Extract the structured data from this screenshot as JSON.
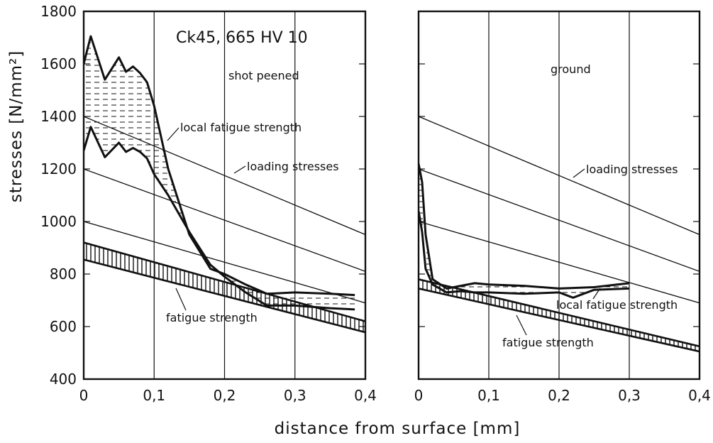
{
  "chart_data": {
    "type": "line",
    "ylabel": "stresses [N/mm²]",
    "xlabel": "distance from surface [mm]",
    "ylim": [
      400,
      1800
    ],
    "yticks": [
      400,
      600,
      800,
      1000,
      1200,
      1400,
      1600,
      1800
    ],
    "ytick_labels": [
      "400",
      "600",
      "800",
      "1000",
      "1200",
      "1400",
      "1600",
      "1800"
    ],
    "specimen_label": "Ck45, 665 HV 10",
    "panels": [
      {
        "title": "shot peened",
        "xlim": [
          0,
          0.4
        ],
        "xticks": [
          0,
          0.1,
          0.2,
          0.3,
          0.4
        ],
        "xtick_labels": [
          "0",
          "0,1",
          "0,2",
          "0,3",
          "0,4"
        ],
        "loading_stresses": {
          "label": "loading stresses",
          "lines": [
            {
              "x": [
                0,
                0.4
              ],
              "y": [
                1400,
                950
              ]
            },
            {
              "x": [
                0,
                0.4
              ],
              "y": [
                1200,
                810
              ]
            },
            {
              "x": [
                0,
                0.4
              ],
              "y": [
                1000,
                690
              ]
            }
          ]
        },
        "fatigue_strength_band": {
          "label": "fatigue strength",
          "x": [
            0,
            0.4
          ],
          "upper": [
            920,
            620
          ],
          "lower": [
            855,
            578
          ]
        },
        "local_fatigue_strength_band": {
          "label": "local fatigue strength",
          "upper": {
            "x": [
              0,
              0.01,
              0.03,
              0.05,
              0.06,
              0.07,
              0.08,
              0.09,
              0.1,
              0.12,
              0.15,
              0.18,
              0.2,
              0.23,
              0.26,
              0.3,
              0.35,
              0.385
            ],
            "y": [
              1600,
              1705,
              1540,
              1625,
              1570,
              1590,
              1565,
              1530,
              1440,
              1200,
              950,
              820,
              800,
              760,
              725,
              730,
              725,
              720
            ]
          },
          "lower": {
            "x": [
              0,
              0.01,
              0.03,
              0.05,
              0.06,
              0.07,
              0.08,
              0.09,
              0.1,
              0.12,
              0.15,
              0.18,
              0.2,
              0.23,
              0.26,
              0.3,
              0.35,
              0.385
            ],
            "y": [
              1270,
              1360,
              1245,
              1300,
              1265,
              1280,
              1265,
              1240,
              1180,
              1100,
              960,
              835,
              790,
              730,
              680,
              680,
              670,
              665
            ]
          }
        }
      },
      {
        "title": "ground",
        "xlim": [
          0,
          0.4
        ],
        "xticks": [
          0,
          0.1,
          0.2,
          0.3,
          0.4
        ],
        "xtick_labels": [
          "0",
          "0,1",
          "0,2",
          "0,3",
          "0,4"
        ],
        "loading_stresses": {
          "label": "loading stresses",
          "lines": [
            {
              "x": [
                0,
                0.4
              ],
              "y": [
                1400,
                950
              ]
            },
            {
              "x": [
                0,
                0.4
              ],
              "y": [
                1200,
                810
              ]
            },
            {
              "x": [
                0,
                0.4
              ],
              "y": [
                1000,
                690
              ]
            }
          ]
        },
        "fatigue_strength_band": {
          "label": "fatigue strength",
          "x": [
            0,
            0.4
          ],
          "upper": [
            780,
            525
          ],
          "lower": [
            745,
            505
          ]
        },
        "local_fatigue_strength_band": {
          "label": "local fatigue strength",
          "upper": {
            "x": [
              0,
              0.005,
              0.01,
              0.02,
              0.04,
              0.06,
              0.08,
              0.1,
              0.15,
              0.2,
              0.25,
              0.3
            ],
            "y": [
              1220,
              1150,
              950,
              780,
              745,
              755,
              765,
              760,
              755,
              745,
              750,
              765
            ]
          },
          "lower": {
            "x": [
              0,
              0.005,
              0.01,
              0.02,
              0.04,
              0.06,
              0.08,
              0.1,
              0.15,
              0.2,
              0.22,
              0.25,
              0.3
            ],
            "y": [
              1040,
              960,
              820,
              760,
              730,
              735,
              730,
              730,
              725,
              730,
              710,
              740,
              745
            ]
          }
        }
      }
    ]
  }
}
